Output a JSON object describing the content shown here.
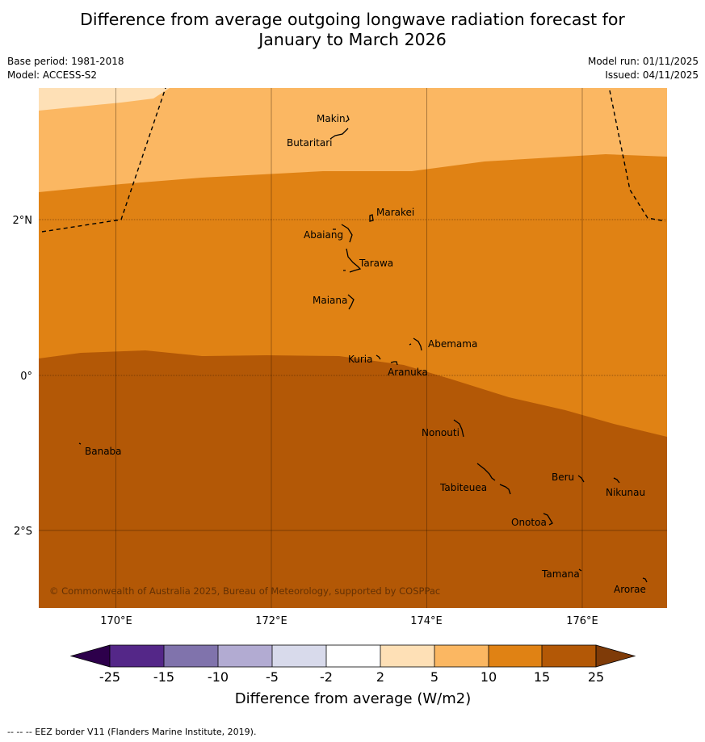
{
  "title": {
    "line1": "Difference from average outgoing longwave radiation forecast for",
    "line2": "January to March 2026"
  },
  "meta": {
    "base_period": "Base period: 1981-2018",
    "model": "Model: ACCESS-S2",
    "model_run": "Model run: 01/11/2025",
    "issued": "Issued: 04/11/2025"
  },
  "map": {
    "copyright": "© Commonwealth of Australia 2025, Bureau of Meteorology, supported by COSPPac",
    "lat_labels": [
      "2°N",
      "0°",
      "2°S"
    ],
    "lon_labels": [
      "170°E",
      "172°E",
      "174°E",
      "176°E"
    ],
    "islands": [
      {
        "id": "makin",
        "name": "Makin"
      },
      {
        "id": "butaritari",
        "name": "Butaritari"
      },
      {
        "id": "marakei",
        "name": "Marakei"
      },
      {
        "id": "abaiang",
        "name": "Abaiang"
      },
      {
        "id": "tarawa",
        "name": "Tarawa"
      },
      {
        "id": "maiana",
        "name": "Maiana"
      },
      {
        "id": "abemama",
        "name": "Abemama"
      },
      {
        "id": "kuria",
        "name": "Kuria"
      },
      {
        "id": "aranuka",
        "name": "Aranuka"
      },
      {
        "id": "nonouti",
        "name": "Nonouti"
      },
      {
        "id": "banaba",
        "name": "Banaba"
      },
      {
        "id": "tabiteuea",
        "name": "Tabiteuea"
      },
      {
        "id": "beru",
        "name": "Beru"
      },
      {
        "id": "nikunau",
        "name": "Nikunau"
      },
      {
        "id": "onotoa",
        "name": "Onotoa"
      },
      {
        "id": "tamana",
        "name": "Tamana"
      },
      {
        "id": "arorae",
        "name": "Arorae"
      }
    ]
  },
  "legend": {
    "ticks": [
      "-25",
      "-15",
      "-10",
      "-5",
      "-2",
      "2",
      "5",
      "10",
      "15",
      "25"
    ],
    "colors": [
      "#4b1882",
      "#5b2a8e",
      "#8273b0",
      "#b1aad5",
      "#dcdcec",
      "#ffffff",
      "#fee0b6",
      "#fbb762",
      "#e08214",
      "#b35806",
      "#7f3b08"
    ],
    "label": "Difference from average (W/m2)"
  },
  "footer": "--  --  -- EEZ border V11 (Flanders Marine Institute, 2019)."
}
